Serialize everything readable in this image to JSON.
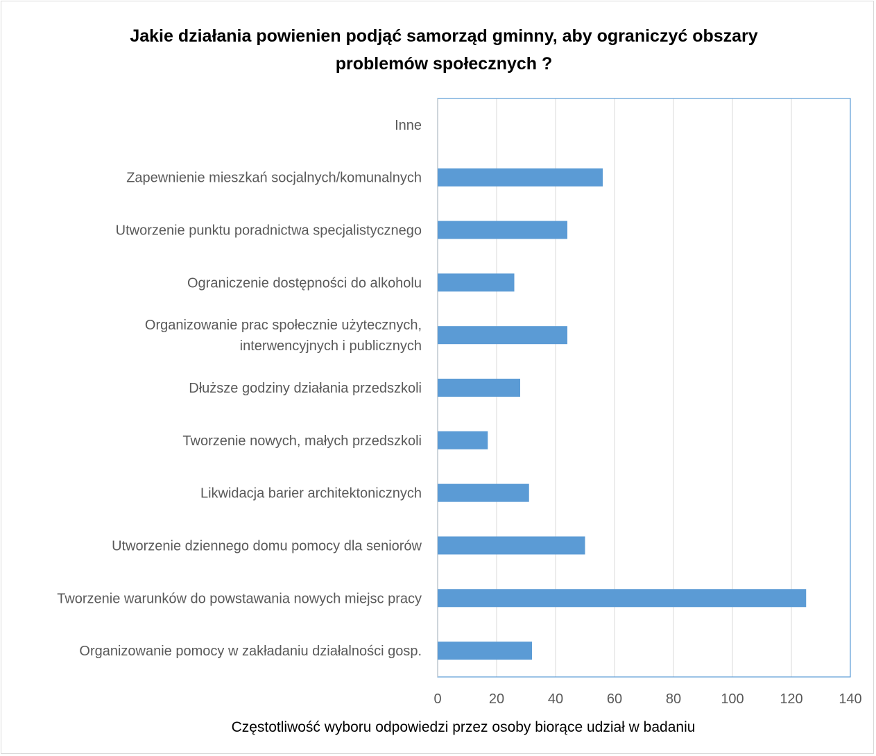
{
  "chart_data": {
    "type": "bar",
    "orientation": "horizontal",
    "title_line1": "Jakie działania powienien podjąć samorząd gminny, aby ograniczyć obszary",
    "title_line2": "problemów społecznych ?",
    "xlabel": "Częstotliwość wyboru odpowiedzi przez osoby biorące udział w badaniu",
    "ylabel": "",
    "xlim": [
      0,
      140
    ],
    "xticks": [
      "0",
      "20",
      "40",
      "60",
      "80",
      "100",
      "120",
      "140"
    ],
    "grid": true,
    "bar_color": "#5b9bd5",
    "categories": [
      {
        "lines": [
          "Inne"
        ],
        "value": 0
      },
      {
        "lines": [
          "Zapewnienie mieszkań socjalnych/komunalnych"
        ],
        "value": 56
      },
      {
        "lines": [
          "Utworzenie punktu poradnictwa specjalistycznego"
        ],
        "value": 44
      },
      {
        "lines": [
          "Ograniczenie dostępności do alkoholu"
        ],
        "value": 26
      },
      {
        "lines": [
          "Organizowanie prac społecznie użytecznych,",
          "interwencyjnych i publicznych"
        ],
        "value": 44
      },
      {
        "lines": [
          "Dłuższe godziny działania przedszkoli"
        ],
        "value": 28
      },
      {
        "lines": [
          "Tworzenie nowych, małych przedszkoli"
        ],
        "value": 17
      },
      {
        "lines": [
          "Likwidacja barier architektonicznych"
        ],
        "value": 31
      },
      {
        "lines": [
          "Utworzenie dziennego domu pomocy dla seniorów"
        ],
        "value": 50
      },
      {
        "lines": [
          "Tworzenie warunków do powstawania nowych miejsc pracy"
        ],
        "value": 125
      },
      {
        "lines": [
          "Organizowanie pomocy w zakładaniu działalności gosp."
        ],
        "value": 32
      }
    ]
  }
}
